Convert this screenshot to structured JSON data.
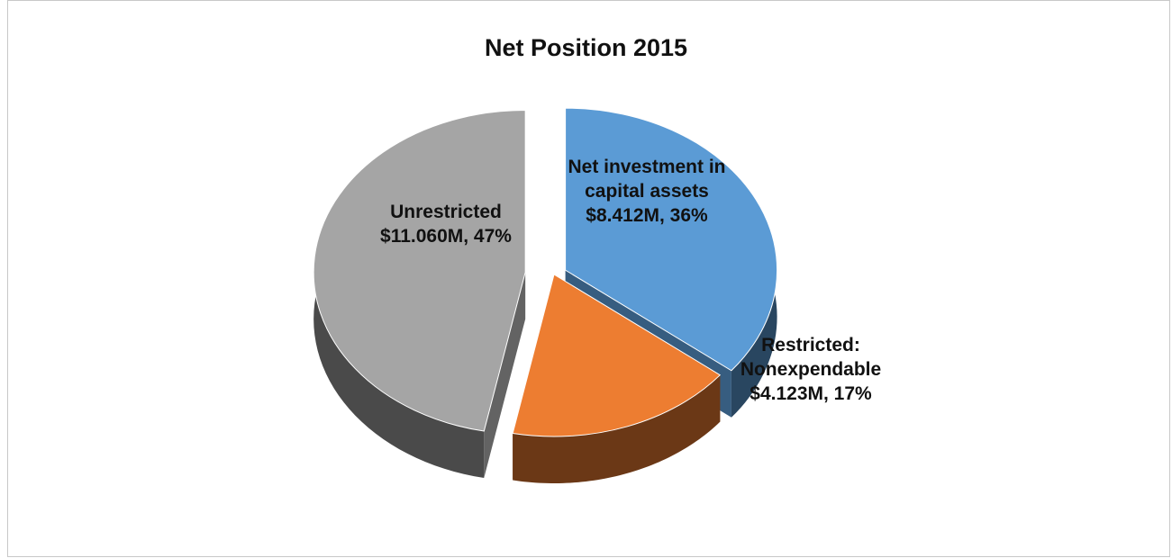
{
  "chart_data": {
    "type": "pie",
    "title": "Net Position 2015",
    "categories": [
      "Net investment in capital assets",
      "Restricted: Nonexpendable",
      "Unrestricted"
    ],
    "values": [
      8.412,
      4.123,
      11.06
    ],
    "value_labels": [
      "$8.412M, 36%",
      "$4.123M, 17%",
      "$11.060M, 47%"
    ],
    "colors": [
      "#5b9bd5",
      "#ed7d31",
      "#a5a5a5"
    ]
  }
}
